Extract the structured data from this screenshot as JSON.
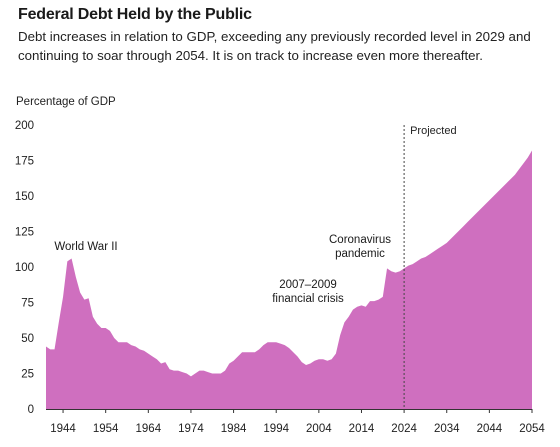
{
  "title": "Federal Debt Held by the Public",
  "subtitle": "Debt increases in relation to GDP, exceeding any previously recorded level in 2029 and continuing to soar through 2054. It is on track to increase even more thereafter.",
  "colors": {
    "area": "#cf6fbf",
    "projected_line": "#444444",
    "axis": "#333333"
  },
  "chart_data": {
    "type": "area",
    "title": "Federal Debt Held by the Public",
    "ylabel": "Percentage of GDP",
    "xlabel": "",
    "xlim": [
      1940,
      2054
    ],
    "ylim": [
      0,
      200
    ],
    "x_ticks": [
      1944,
      1954,
      1964,
      1974,
      1984,
      1994,
      2004,
      2014,
      2024,
      2034,
      2044,
      2054
    ],
    "y_ticks": [
      0,
      25,
      50,
      75,
      100,
      125,
      150,
      175,
      200
    ],
    "projection_start": 2024,
    "projection_label": "Projected",
    "grid": false,
    "annotations": [
      {
        "text": "World War II",
        "x": 1946,
        "y": 106
      },
      {
        "text": "2007–2009 financial crisis",
        "x": 2009,
        "y": 52
      },
      {
        "text": "Coronavirus pandemic",
        "x": 2020,
        "y": 100
      }
    ],
    "series": [
      {
        "x": [
          1940,
          1941,
          1942,
          1943,
          1944,
          1945,
          1946,
          1947,
          1948,
          1949,
          1950,
          1951,
          1952,
          1953,
          1954,
          1955,
          1956,
          1957,
          1958,
          1959,
          1960,
          1961,
          1962,
          1963,
          1964,
          1965,
          1966,
          1967,
          1968,
          1969,
          1970,
          1971,
          1972,
          1973,
          1974,
          1975,
          1976,
          1977,
          1978,
          1979,
          1980,
          1981,
          1982,
          1983,
          1984,
          1985,
          1986,
          1987,
          1988,
          1989,
          1990,
          1991,
          1992,
          1993,
          1994,
          1995,
          1996,
          1997,
          1998,
          1999,
          2000,
          2001,
          2002,
          2003,
          2004,
          2005,
          2006,
          2007,
          2008,
          2009,
          2010,
          2011,
          2012,
          2013,
          2014,
          2015,
          2016,
          2017,
          2018,
          2019,
          2020,
          2021,
          2022,
          2023,
          2024,
          2025,
          2026,
          2027,
          2028,
          2029,
          2030,
          2031,
          2032,
          2033,
          2034,
          2035,
          2036,
          2037,
          2038,
          2039,
          2040,
          2041,
          2042,
          2043,
          2044,
          2045,
          2046,
          2047,
          2048,
          2049,
          2050,
          2051,
          2052,
          2053,
          2054
        ],
        "values": [
          44,
          42,
          42,
          61,
          79,
          104,
          106,
          93,
          82,
          77,
          78,
          65,
          60,
          57,
          57,
          55,
          50,
          47,
          47,
          47,
          45,
          44,
          42,
          41,
          39,
          37,
          35,
          32,
          33,
          28,
          27,
          27,
          26,
          25,
          23,
          25,
          27,
          27,
          26,
          25,
          25,
          25,
          27,
          32,
          34,
          37,
          40,
          40,
          40,
          40,
          42,
          45,
          47,
          47,
          47,
          46,
          45,
          43,
          40,
          37,
          33,
          31,
          32,
          34,
          35,
          35,
          34,
          35,
          39,
          52,
          61,
          65,
          70,
          72,
          73,
          72,
          76,
          76,
          77,
          79,
          99,
          97,
          96,
          97,
          99,
          101,
          102,
          104,
          106,
          107,
          109,
          111,
          113,
          115,
          117,
          120,
          123,
          126,
          129,
          132,
          135,
          138,
          141,
          144,
          147,
          150,
          153,
          156,
          159,
          162,
          165,
          169,
          173,
          177,
          182
        ]
      }
    ]
  }
}
